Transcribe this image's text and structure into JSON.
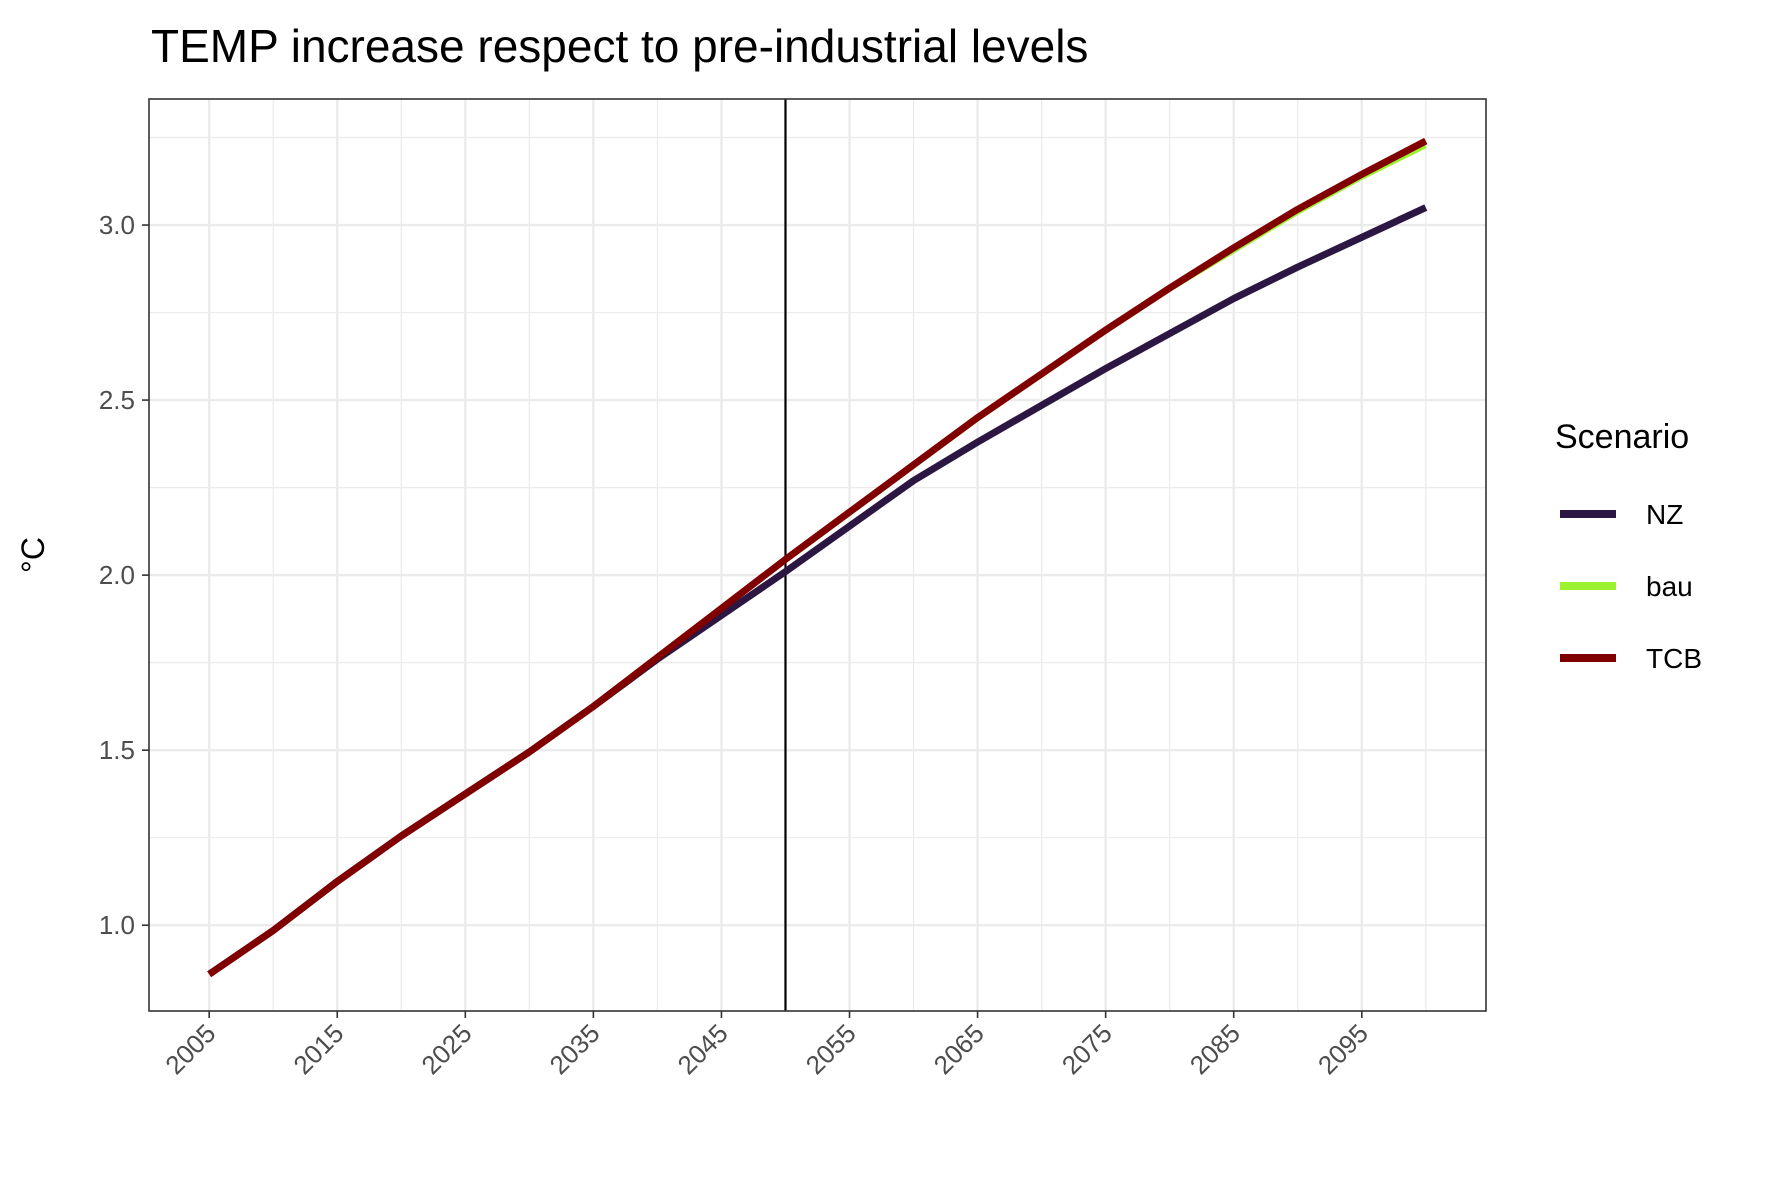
{
  "chart_data": {
    "type": "line",
    "title": "TEMP increase respect to pre-industrial levels",
    "xlabel": "",
    "ylabel": "°C",
    "xlim": [
      2000.3,
      2104.7
    ],
    "ylim": [
      0.755,
      3.36
    ],
    "x_ticks": [
      2005,
      2015,
      2025,
      2035,
      2045,
      2055,
      2065,
      2075,
      2085,
      2095
    ],
    "y_ticks": [
      1.0,
      1.5,
      2.0,
      2.5,
      3.0
    ],
    "y_tick_labels": [
      "1.0",
      "1.5",
      "2.0",
      "2.5",
      "3.0"
    ],
    "vline_x": 2050,
    "grid": true,
    "legend": {
      "title": "Scenario",
      "placement": "right"
    },
    "x": [
      2005,
      2010,
      2015,
      2020,
      2025,
      2030,
      2035,
      2040,
      2045,
      2050,
      2055,
      2060,
      2065,
      2070,
      2075,
      2080,
      2085,
      2090,
      2095,
      2100
    ],
    "series": [
      {
        "name": "NZ",
        "color": "#2b1741",
        "values": [
          0.86,
          0.985,
          1.125,
          1.255,
          1.375,
          1.495,
          1.625,
          1.76,
          1.885,
          2.01,
          2.14,
          2.27,
          2.38,
          2.485,
          2.59,
          2.69,
          2.79,
          2.88,
          2.965,
          3.05
        ]
      },
      {
        "name": "bau",
        "color": "#9bf22e",
        "values": [
          0.86,
          0.985,
          1.125,
          1.255,
          1.375,
          1.495,
          1.625,
          1.765,
          1.905,
          2.04,
          2.175,
          2.31,
          2.445,
          2.57,
          2.695,
          2.815,
          2.925,
          3.035,
          3.135,
          3.225
        ]
      },
      {
        "name": "TCB",
        "color": "#800000",
        "values": [
          0.86,
          0.985,
          1.125,
          1.255,
          1.375,
          1.495,
          1.625,
          1.765,
          1.905,
          2.045,
          2.18,
          2.315,
          2.45,
          2.575,
          2.7,
          2.82,
          2.935,
          3.045,
          3.145,
          3.24
        ]
      }
    ]
  }
}
